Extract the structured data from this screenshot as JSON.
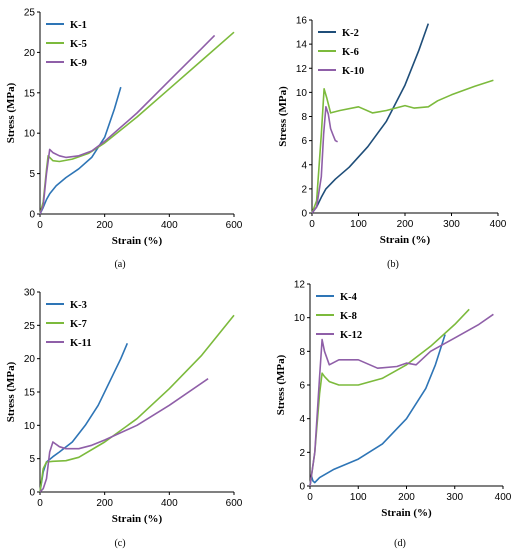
{
  "colors": {
    "blue": "#2e75b6",
    "green": "#7cba3c",
    "purple": "#8f5fa8",
    "dark_blue": "#1f4e79"
  },
  "chart_data": [
    {
      "type": "line",
      "panel_label": "(a)",
      "xlabel": "Strain (%)",
      "ylabel": "Stress (MPa)",
      "xlim": [
        0,
        600
      ],
      "ylim": [
        0,
        25
      ],
      "xticks": [
        0,
        200,
        400,
        600
      ],
      "yticks": [
        0,
        5,
        10,
        15,
        20,
        25
      ],
      "legend_position": "top-left",
      "series": [
        {
          "name": "K-1",
          "color": "#2e75b6",
          "x": [
            0,
            10,
            20,
            30,
            50,
            80,
            120,
            160,
            200,
            230,
            250
          ],
          "y": [
            0,
            0.8,
            1.8,
            2.5,
            3.5,
            4.5,
            5.6,
            7.0,
            9.5,
            13.0,
            15.7
          ]
        },
        {
          "name": "K-5",
          "color": "#7cba3c",
          "x": [
            0,
            10,
            20,
            25,
            30,
            40,
            60,
            100,
            150,
            200,
            300,
            400,
            500,
            600
          ],
          "y": [
            0,
            1.5,
            5.5,
            7.2,
            7.0,
            6.6,
            6.5,
            6.8,
            7.5,
            8.8,
            12.0,
            15.5,
            19.0,
            22.5
          ]
        },
        {
          "name": "K-9",
          "color": "#8f5fa8",
          "x": [
            0,
            10,
            20,
            30,
            40,
            60,
            80,
            120,
            160,
            200,
            300,
            400,
            500,
            540
          ],
          "y": [
            0,
            1.0,
            5.0,
            8.0,
            7.6,
            7.2,
            7.0,
            7.2,
            7.8,
            9.0,
            12.5,
            16.5,
            20.5,
            22.1
          ]
        }
      ]
    },
    {
      "type": "line",
      "panel_label": "(b)",
      "xlabel": "Strain (%)",
      "ylabel": "Stress (MPa)",
      "xlim": [
        0,
        400
      ],
      "ylim": [
        0,
        16
      ],
      "xticks": [
        0,
        100,
        200,
        300,
        400
      ],
      "yticks": [
        0,
        2,
        4,
        6,
        8,
        10,
        12,
        14,
        16
      ],
      "legend_position": "top-left",
      "series": [
        {
          "name": "K-2",
          "color": "#1f4e79",
          "x": [
            0,
            10,
            20,
            30,
            50,
            80,
            120,
            160,
            200,
            230,
            250
          ],
          "y": [
            0,
            0.5,
            1.3,
            2.0,
            2.8,
            3.8,
            5.5,
            7.6,
            10.6,
            13.5,
            15.7
          ]
        },
        {
          "name": "K-6",
          "color": "#7cba3c",
          "x": [
            0,
            10,
            20,
            26,
            32,
            40,
            60,
            100,
            130,
            160,
            200,
            220,
            250,
            270,
            300,
            350,
            390
          ],
          "y": [
            0,
            1.0,
            6.5,
            10.3,
            9.5,
            8.3,
            8.5,
            8.8,
            8.3,
            8.5,
            8.9,
            8.7,
            8.8,
            9.3,
            9.8,
            10.5,
            11.0
          ]
        },
        {
          "name": "K-10",
          "color": "#8f5fa8",
          "x": [
            0,
            10,
            20,
            25,
            30,
            35,
            40,
            45,
            50,
            55
          ],
          "y": [
            0,
            0.5,
            3.0,
            6.5,
            8.8,
            8.2,
            7.0,
            6.5,
            6.0,
            5.9
          ]
        }
      ]
    },
    {
      "type": "line",
      "panel_label": "(c)",
      "xlabel": "Strain (%)",
      "ylabel": "Stress (MPa)",
      "xlim": [
        0,
        600
      ],
      "ylim": [
        0,
        30
      ],
      "xticks": [
        0,
        200,
        400,
        600
      ],
      "yticks": [
        0,
        5,
        10,
        15,
        20,
        25,
        30
      ],
      "legend_position": "top-left",
      "series": [
        {
          "name": "K-3",
          "color": "#2e75b6",
          "x": [
            0,
            10,
            20,
            40,
            60,
            100,
            140,
            180,
            220,
            250,
            270
          ],
          "y": [
            0,
            3.0,
            4.5,
            5.3,
            6.0,
            7.5,
            10.0,
            13.0,
            17.0,
            20.0,
            22.3
          ]
        },
        {
          "name": "K-7",
          "color": "#7cba3c",
          "x": [
            0,
            10,
            20,
            40,
            80,
            120,
            200,
            300,
            400,
            500,
            600
          ],
          "y": [
            0,
            3.5,
            4.5,
            4.6,
            4.7,
            5.2,
            7.5,
            11.0,
            15.5,
            20.5,
            26.5
          ]
        },
        {
          "name": "K-11",
          "color": "#8f5fa8",
          "x": [
            0,
            10,
            20,
            30,
            40,
            60,
            80,
            120,
            160,
            200,
            300,
            400,
            520
          ],
          "y": [
            0,
            0.5,
            2.0,
            6.0,
            7.5,
            6.8,
            6.5,
            6.5,
            7.0,
            7.8,
            10.0,
            13.0,
            17.0
          ]
        }
      ]
    },
    {
      "type": "line",
      "panel_label": "(d)",
      "xlabel": "Strain (%)",
      "ylabel": "Stress (MPa)",
      "xlim": [
        0,
        400
      ],
      "ylim": [
        0,
        12
      ],
      "xticks": [
        0,
        100,
        200,
        300,
        400
      ],
      "yticks": [
        0,
        2,
        4,
        6,
        8,
        10,
        12
      ],
      "legend_position": "top-left",
      "series": [
        {
          "name": "K-4",
          "color": "#2e75b6",
          "x": [
            0,
            3,
            6,
            10,
            20,
            50,
            100,
            150,
            200,
            240,
            260,
            280
          ],
          "y": [
            0,
            0.6,
            0.3,
            0.2,
            0.5,
            1.0,
            1.6,
            2.5,
            4.0,
            5.8,
            7.2,
            9.0
          ]
        },
        {
          "name": "K-8",
          "color": "#7cba3c",
          "x": [
            0,
            10,
            20,
            25,
            30,
            40,
            60,
            100,
            150,
            200,
            250,
            300,
            330
          ],
          "y": [
            0,
            2.0,
            5.5,
            6.7,
            6.5,
            6.2,
            6.0,
            6.0,
            6.4,
            7.2,
            8.3,
            9.6,
            10.5
          ]
        },
        {
          "name": "K-12",
          "color": "#8f5fa8",
          "x": [
            0,
            10,
            20,
            25,
            30,
            40,
            60,
            100,
            140,
            180,
            200,
            220,
            250,
            300,
            350,
            380
          ],
          "y": [
            0,
            2.0,
            6.5,
            8.7,
            8.0,
            7.2,
            7.5,
            7.5,
            7.0,
            7.1,
            7.3,
            7.2,
            8.0,
            8.8,
            9.6,
            10.2
          ]
        }
      ]
    }
  ]
}
